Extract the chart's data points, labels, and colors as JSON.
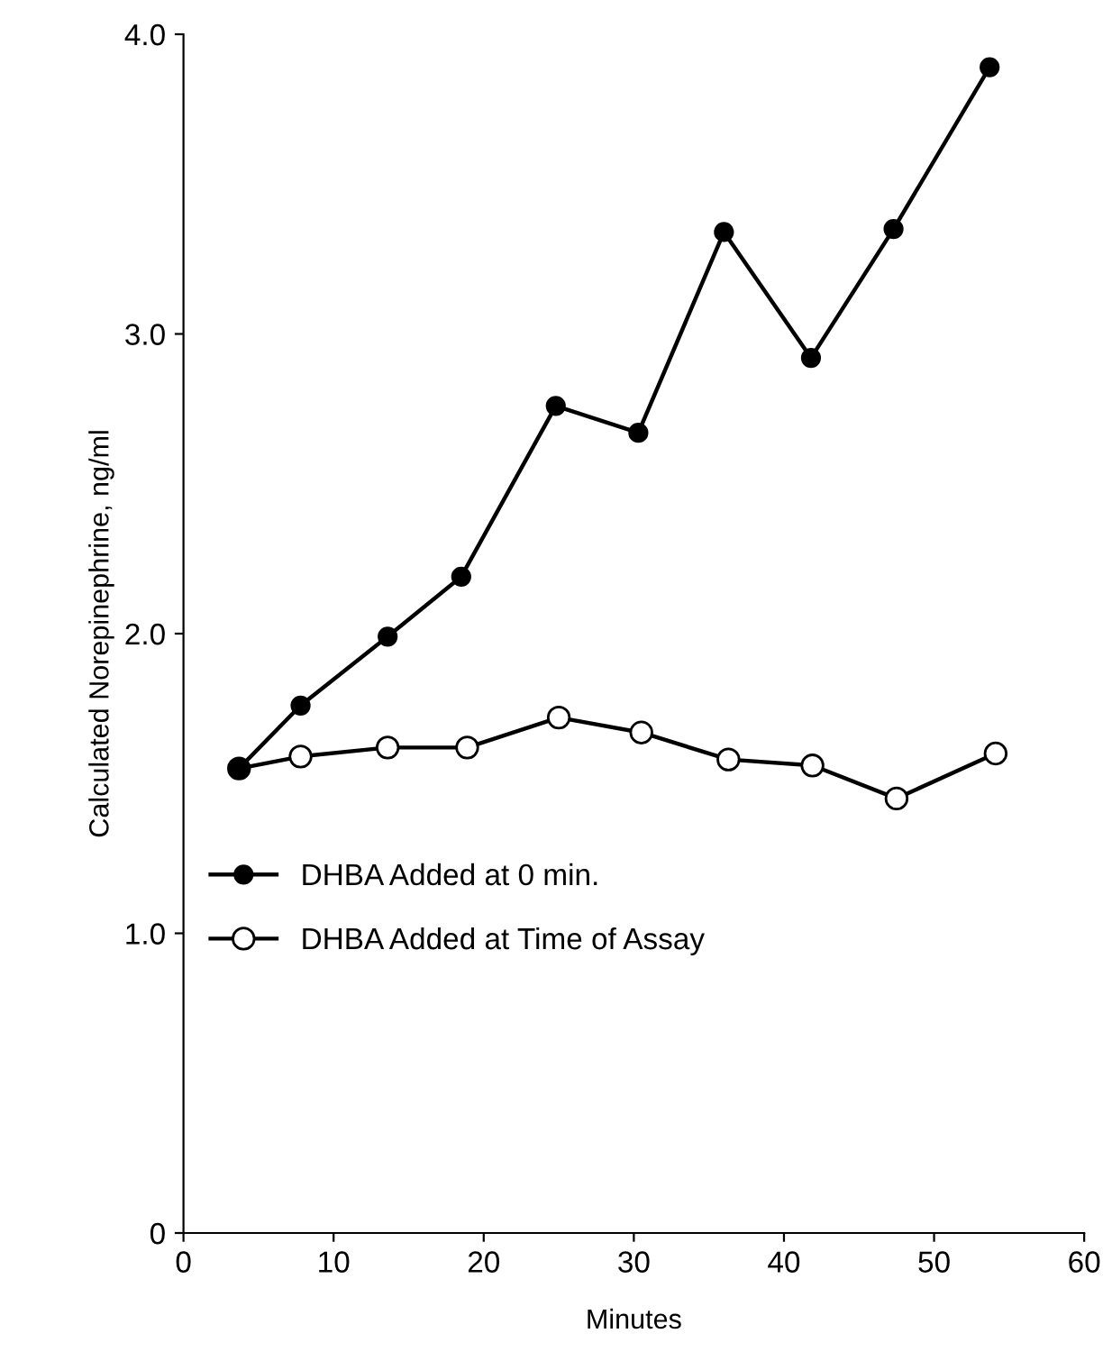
{
  "chart_data": {
    "type": "line",
    "xlabel": "Minutes",
    "ylabel": "Calculated Norepinephrine, ng/ml",
    "series": [
      {
        "name": "DHBA Added at 0 min.",
        "color": "#000000",
        "x": [
          3.7,
          7.8,
          13.6,
          18.5,
          24.8,
          30.3,
          36.0,
          41.8,
          47.3,
          53.7
        ],
        "values": [
          1.55,
          1.76,
          1.99,
          2.19,
          2.76,
          2.67,
          3.34,
          2.92,
          3.35,
          3.89
        ]
      },
      {
        "name": "DHBA Added at Time of Assay",
        "color": "#000000",
        "x": [
          3.7,
          7.8,
          13.6,
          18.9,
          25.0,
          30.5,
          36.3,
          41.9,
          47.5,
          54.1
        ],
        "values": [
          1.55,
          1.59,
          1.62,
          1.62,
          1.72,
          1.67,
          1.58,
          1.56,
          1.45,
          1.6
        ]
      }
    ],
    "xlim": [
      0,
      60
    ],
    "xticks": [
      0,
      10,
      20,
      30,
      40,
      50,
      60
    ],
    "ylim": [
      0,
      4
    ],
    "yticks": [
      {
        "value": 0,
        "label": "0"
      },
      {
        "value": 1,
        "label": "1.0"
      },
      {
        "value": 2,
        "label": "2.0"
      },
      {
        "value": 3,
        "label": "3.0"
      },
      {
        "value": 4,
        "label": "4.0"
      }
    ],
    "grid": false,
    "legend": "center left",
    "marker": "circle",
    "line_style": "solid"
  }
}
